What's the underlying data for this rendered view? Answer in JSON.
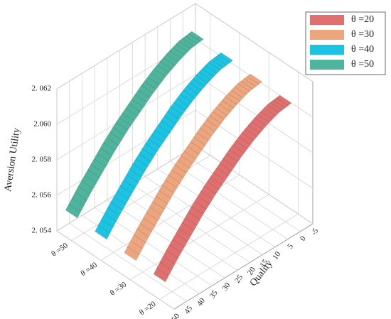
{
  "chart_data": {
    "type": "surface3d",
    "x_label": "Quality",
    "z_label": "Aversion Utility",
    "x": [
      0,
      5,
      10,
      15,
      20,
      25,
      30,
      35,
      40,
      45,
      50
    ],
    "series": [
      {
        "name": "θ =20",
        "color": "#e06f6f",
        "values": [
          2.0609,
          2.0608,
          2.0605,
          2.0601,
          2.0596,
          2.059,
          2.0584,
          2.0577,
          2.0569,
          2.0561,
          2.0552
        ]
      },
      {
        "name": "θ =30",
        "color": "#eda57e",
        "values": [
          2.061,
          2.0609,
          2.0606,
          2.0602,
          2.0597,
          2.0591,
          2.0585,
          2.0578,
          2.057,
          2.0562,
          2.0553
        ]
      },
      {
        "name": "θ =40",
        "color": "#1cc3e3",
        "values": [
          2.0611,
          2.061,
          2.0607,
          2.0603,
          2.0598,
          2.0592,
          2.0586,
          2.0579,
          2.0571,
          2.0563,
          2.0554
        ]
      },
      {
        "name": "θ =50",
        "color": "#4fb49c",
        "values": [
          2.0612,
          2.0611,
          2.0608,
          2.0604,
          2.0599,
          2.0593,
          2.0587,
          2.058,
          2.0572,
          2.0564,
          2.0555
        ]
      }
    ],
    "xlim": [
      -5,
      50
    ],
    "xticks": [
      -5,
      0,
      5,
      10,
      15,
      20,
      25,
      30,
      35,
      40,
      45,
      50
    ],
    "ylim": [
      15,
      55
    ],
    "yticks": [
      {
        "value": 20,
        "label": "θ =20"
      },
      {
        "value": 30,
        "label": "θ =30"
      },
      {
        "value": 40,
        "label": "θ =40"
      },
      {
        "value": 50,
        "label": "θ =50"
      }
    ],
    "zlim": [
      2.054,
      2.062
    ],
    "zticks": [
      {
        "value": 2.054,
        "label": "2. 054"
      },
      {
        "value": 2.056,
        "label": "2. 056"
      },
      {
        "value": 2.058,
        "label": "2. 058"
      },
      {
        "value": 2.06,
        "label": "2.060"
      },
      {
        "value": 2.062,
        "label": "2. 062"
      }
    ],
    "grid": true,
    "legend": "upper-right"
  }
}
